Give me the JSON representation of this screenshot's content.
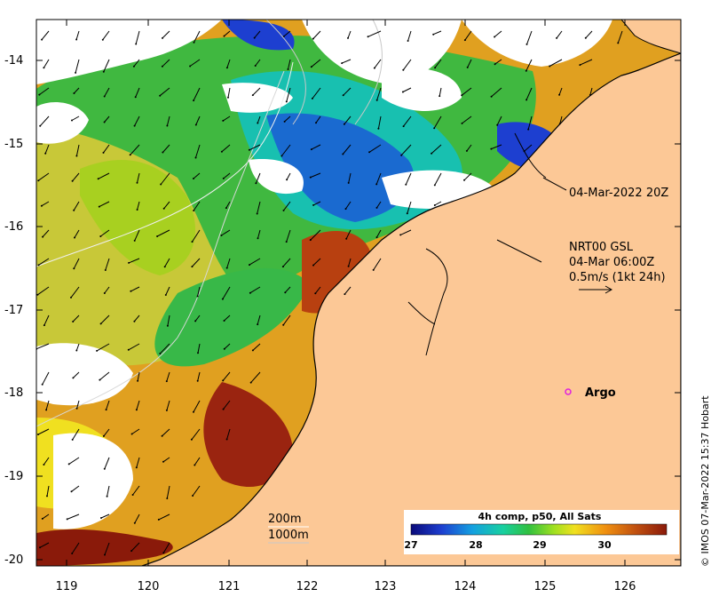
{
  "map": {
    "x_ticks": [
      "119",
      "120",
      "121",
      "122",
      "123",
      "124",
      "125",
      "126"
    ],
    "y_ticks": [
      "-14",
      "-15",
      "-16",
      "-17",
      "-18",
      "-19",
      "-20"
    ],
    "timestamp_label": "04-Mar-2022 20Z",
    "current_block": {
      "line1": "NRT00 GSL",
      "line2": "04-Mar 06:00Z",
      "line3": "0.5m/s (1kt 24h)"
    },
    "argo_label": "Argo",
    "argo_color": "#e020e0",
    "isobaths": [
      "200m",
      "1000m"
    ],
    "colorbar": {
      "title": "4h comp, p50, All Sats",
      "ticks": [
        "27",
        "28",
        "29",
        "30"
      ],
      "colors": [
        "#0a0a7a",
        "#1d3fd0",
        "#14a0e0",
        "#18d0a0",
        "#30c040",
        "#a0e020",
        "#f0e020",
        "#f09010",
        "#c05010",
        "#8a1a0a"
      ]
    },
    "credit": "© IMOS 07-Mar-2022 15:37 Hobart",
    "land_color": "#fcc896"
  }
}
